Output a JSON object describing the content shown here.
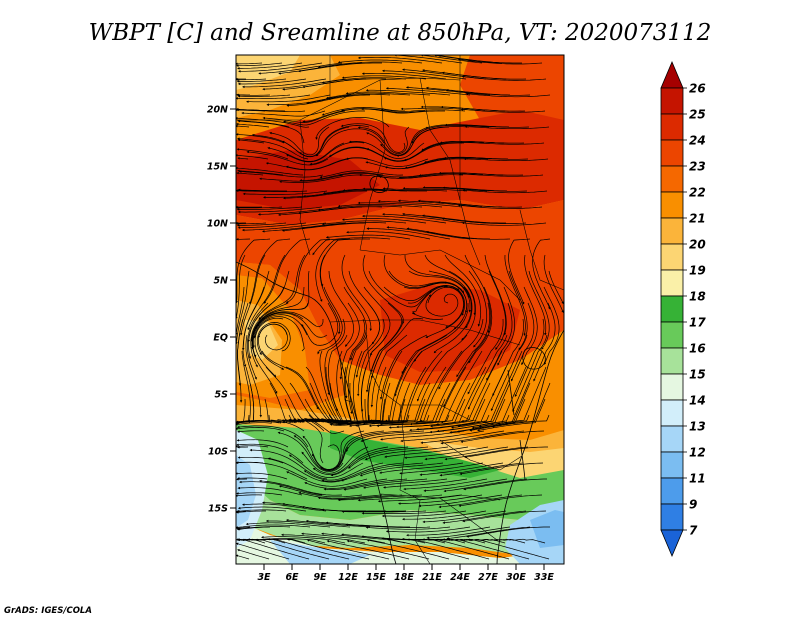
{
  "title": "WBPT [C] and Sreamline at 850hPa, VT: 2020073112",
  "credit": "GrADS: IGES/COLA",
  "map": {
    "variable": "Wet-bulb potential temperature",
    "units": "C",
    "level": "850hPa",
    "valid_time": "2020073112",
    "lon_labels": [
      "3E",
      "6E",
      "9E",
      "12E",
      "15E",
      "18E",
      "21E",
      "24E",
      "27E",
      "30E",
      "33E"
    ],
    "lat_labels": [
      "20N",
      "15N",
      "10N",
      "5N",
      "EQ",
      "5S",
      "10S",
      "15S"
    ]
  },
  "colorbar": {
    "labels": [
      "26",
      "25",
      "24",
      "23",
      "22",
      "21",
      "20",
      "19",
      "18",
      "17",
      "16",
      "15",
      "14",
      "13",
      "12",
      "11",
      "9",
      "7"
    ],
    "colors": [
      "#a50000",
      "#c51400",
      "#dc2a00",
      "#ec4500",
      "#f56800",
      "#f98f00",
      "#fbb43a",
      "#fcd573",
      "#faf0a8",
      "#36b236",
      "#68ca5a",
      "#a7e29a",
      "#e5f7e1",
      "#d2eefa",
      "#a6d6f7",
      "#7bbdf1",
      "#4d9ceb",
      "#2f7fe4",
      "#1a63d8"
    ]
  }
}
